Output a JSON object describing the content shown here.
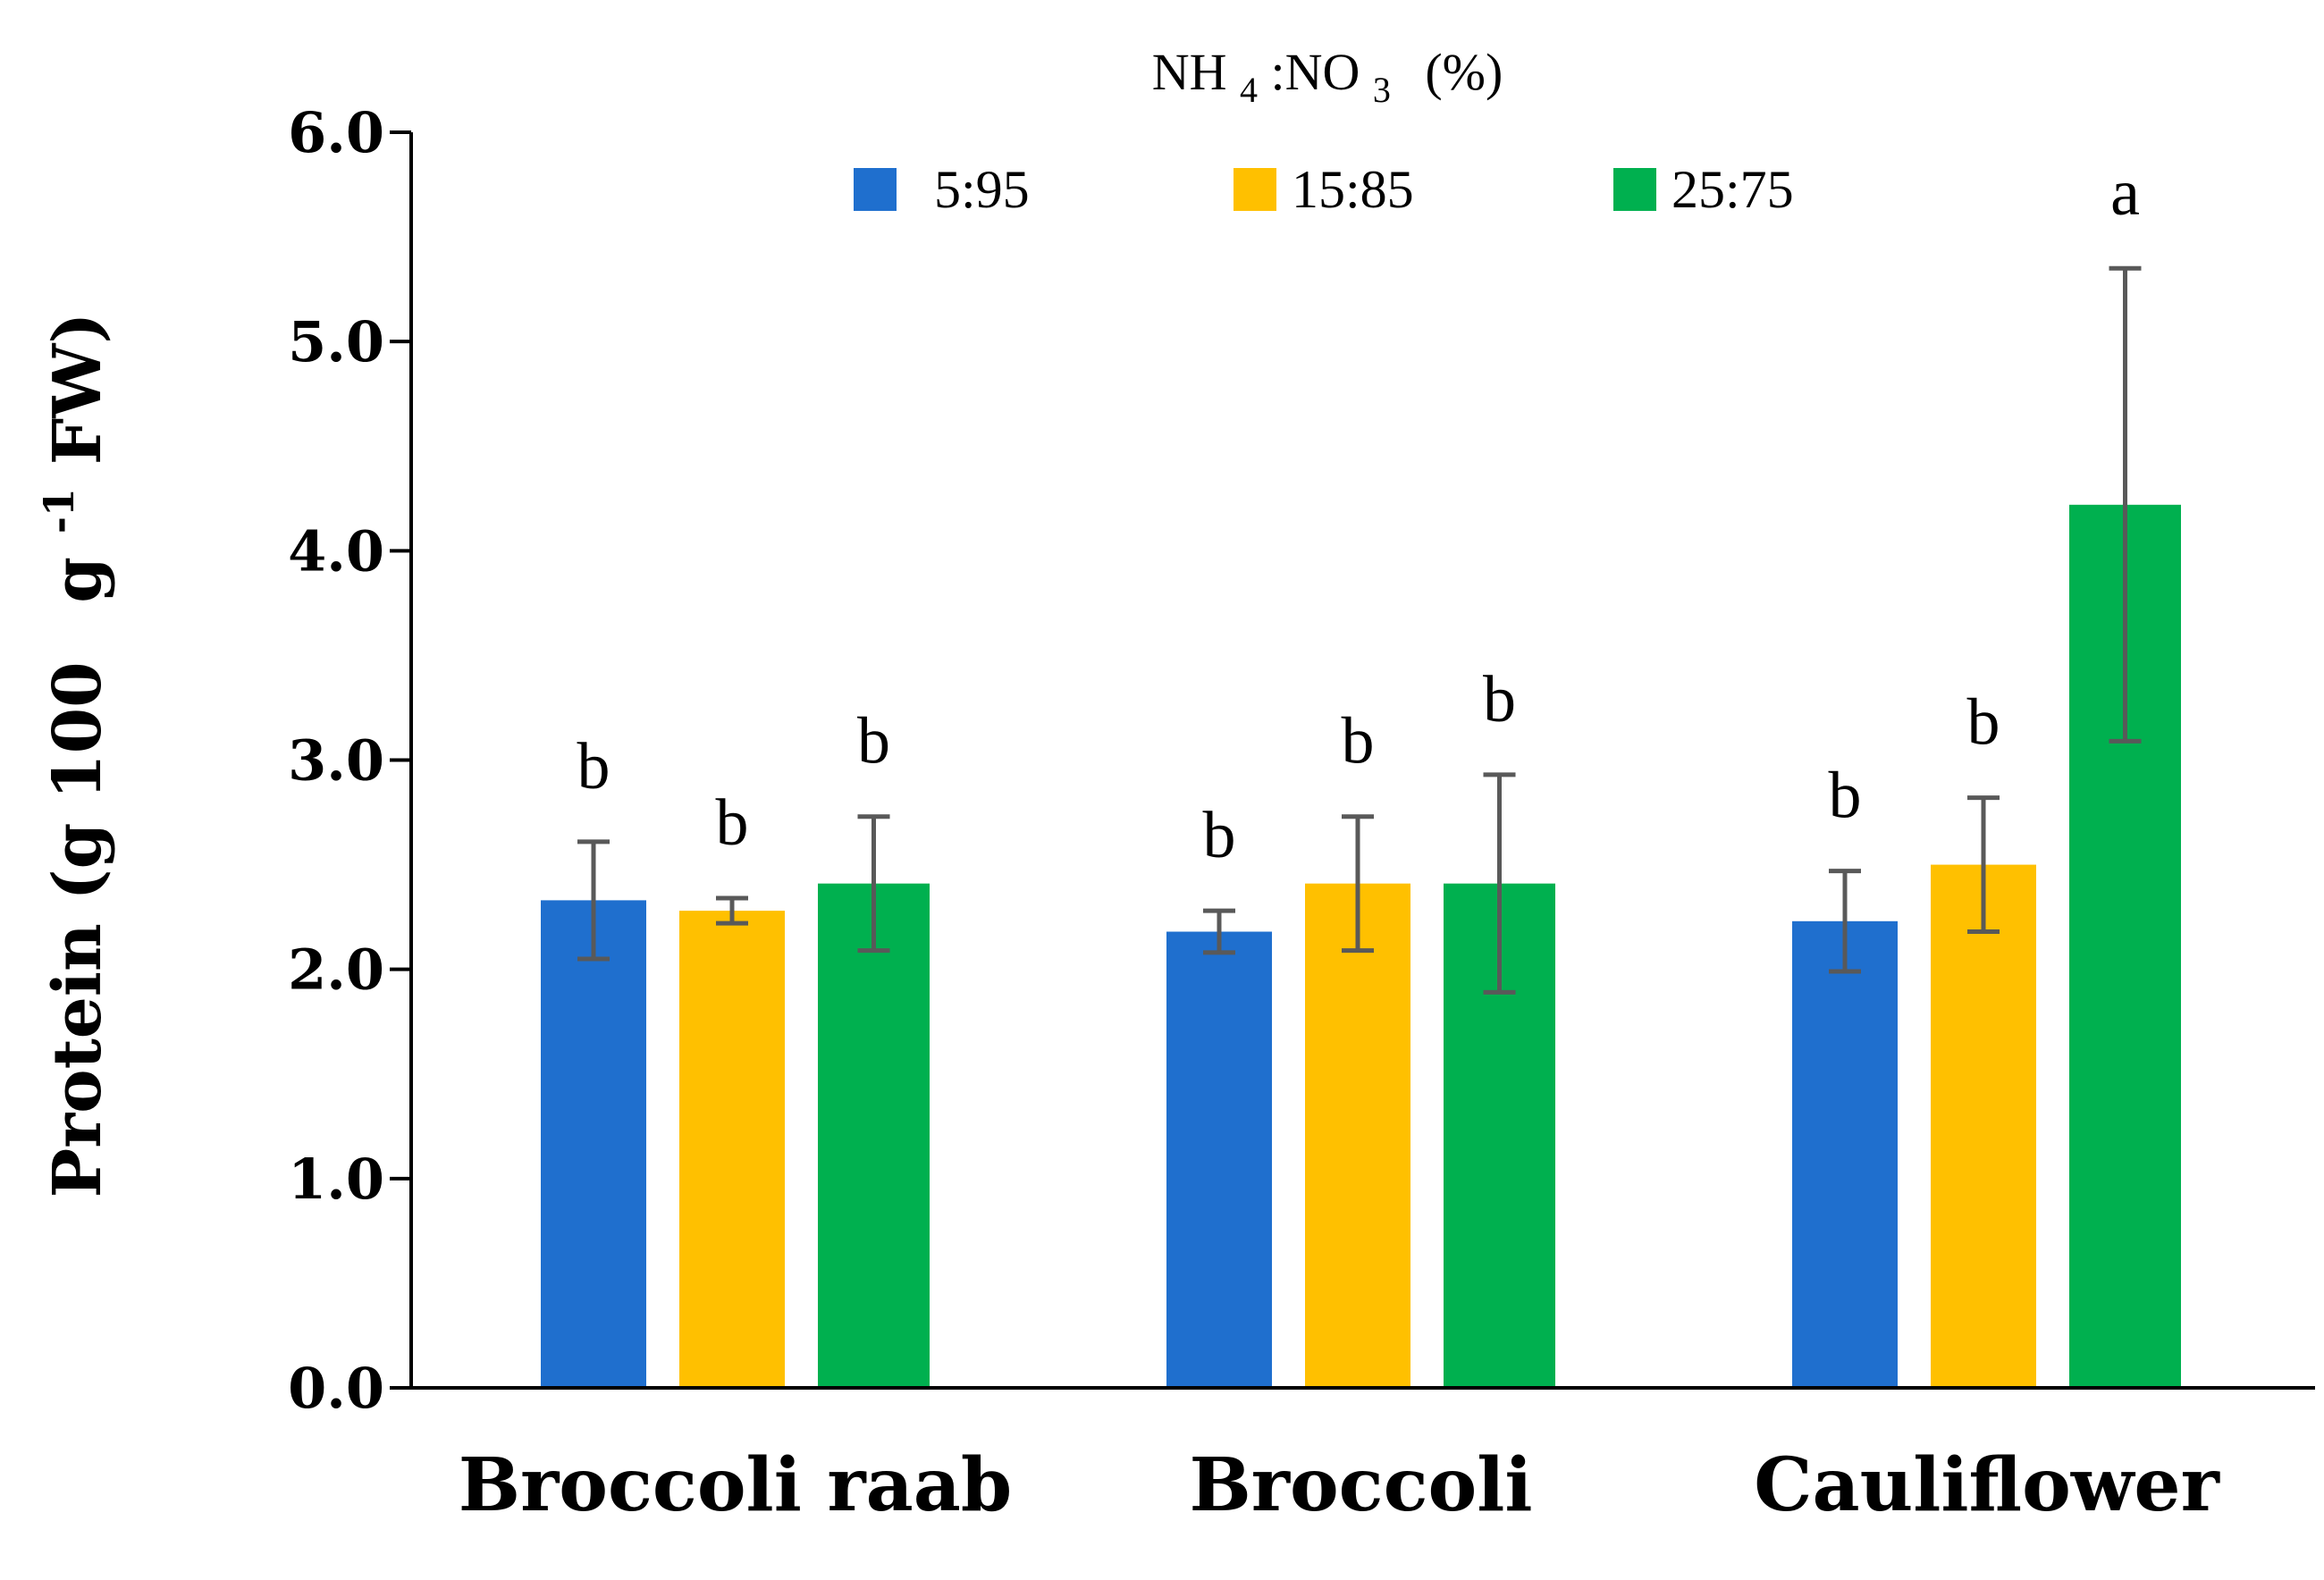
{
  "chart_data": {
    "type": "bar",
    "legend_title": "NH4:NO3 (%)",
    "legend_title_parts": {
      "a": "NH",
      "a_sub": "4",
      "b": ":NO",
      "b_sub": "3",
      "c": "(%)"
    },
    "ylabel": "Protein (g 100 g-1 FW)",
    "ylabel_parts": {
      "a": "Protein (g 100",
      "b": "g",
      "b_sup": "-1",
      "c": "FW)"
    },
    "xlabel": "",
    "ylim": [
      0,
      6
    ],
    "yticks": [
      "0.0",
      "1.0",
      "2.0",
      "3.0",
      "4.0",
      "5.0",
      "6.0"
    ],
    "categories": [
      "Broccoli raab",
      "Broccoli",
      "Cauliflower"
    ],
    "legend_position": "top-center",
    "grid": false,
    "series": [
      {
        "name": "5:95",
        "color": "#1f6fce",
        "values": [
          2.33,
          2.18,
          2.23
        ],
        "errors": [
          0.28,
          0.1,
          0.24
        ],
        "letters": [
          "b",
          "b",
          "b"
        ]
      },
      {
        "name": "15:85",
        "color": "#ffc000",
        "values": [
          2.28,
          2.41,
          2.5
        ],
        "errors": [
          0.06,
          0.32,
          0.32
        ],
        "letters": [
          "b",
          "b",
          "b"
        ]
      },
      {
        "name": "25:75",
        "color": "#00b04f",
        "values": [
          2.41,
          2.41,
          4.22
        ],
        "errors": [
          0.32,
          0.52,
          1.13
        ],
        "letters": [
          "b",
          "b",
          "a"
        ]
      }
    ]
  }
}
